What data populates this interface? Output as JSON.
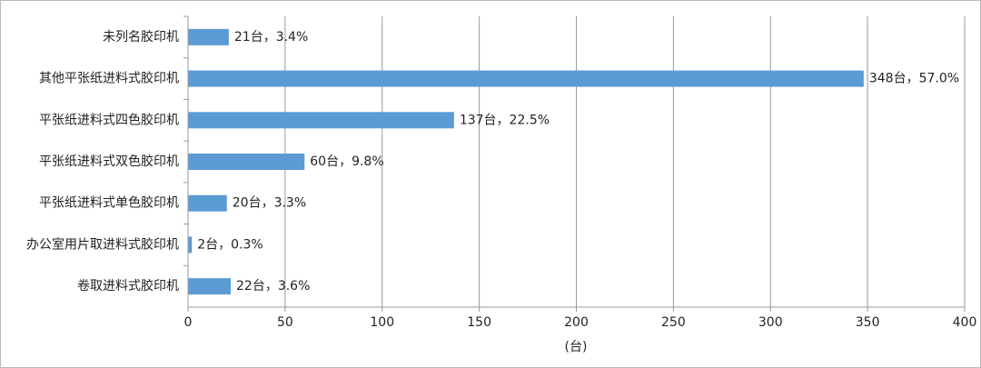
{
  "chart_data": {
    "type": "hbar",
    "categories": [
      "未列名胶印机",
      "其他平张纸进料式胶印机",
      "平张纸进料式四色胶印机",
      "平张纸进料式双色胶印机",
      "平张纸进料式单色胶印机",
      "办公室用片取进料式胶印机",
      "卷取进料式胶印机"
    ],
    "values": [
      21,
      348,
      137,
      60,
      20,
      2,
      22
    ],
    "value_labels": [
      "21台，3.4%",
      "348台，57.0%",
      "137台，22.5%",
      "60台，9.8%",
      "20台，3.3%",
      "2台，0.3%",
      "22台，3.6%"
    ],
    "color": "#5b9bd5",
    "xlim": [
      0,
      400
    ],
    "xticks": [
      0,
      50,
      100,
      150,
      200,
      250,
      300,
      350,
      400
    ],
    "x_label": "(台)",
    "grid": true
  }
}
